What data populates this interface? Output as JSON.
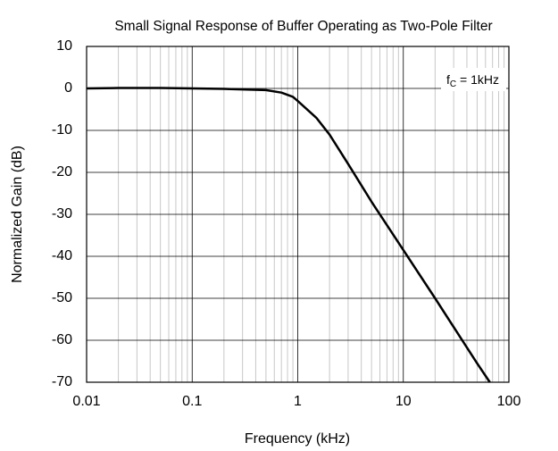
{
  "chart_data": {
    "type": "line",
    "title": "Small Signal Response of Buffer Operating as Two-Pole Filter",
    "x_label": "Frequency (kHz)",
    "y_label": "Normalized Gain (dB)",
    "annotation": {
      "base": "f",
      "sub": "C",
      "rest": " = 1kHz"
    },
    "x_log": true,
    "xlim": [
      0.01,
      100
    ],
    "xticks": [
      0.01,
      0.1,
      1,
      10,
      100
    ],
    "xminorticks": [
      0.02,
      0.03,
      0.04,
      0.05,
      0.06,
      0.07,
      0.08,
      0.09,
      0.2,
      0.3,
      0.4,
      0.5,
      0.6,
      0.7,
      0.8,
      0.9,
      2,
      3,
      4,
      5,
      6,
      7,
      8,
      9,
      20,
      30,
      40,
      50,
      60,
      70,
      80,
      90
    ],
    "ylim": [
      -70,
      10
    ],
    "yticks": [
      -70,
      -60,
      -50,
      -40,
      -30,
      -20,
      -10,
      0,
      10
    ],
    "grid": true,
    "series": [
      {
        "name": "Gain",
        "color": "#000000",
        "x": [
          0.01,
          0.02,
          0.05,
          0.1,
          0.2,
          0.5,
          0.7,
          0.9,
          1,
          1.5,
          2,
          3,
          5,
          10,
          20,
          50,
          66
        ],
        "values": [
          0,
          0.1,
          0.1,
          0,
          -0.1,
          -0.4,
          -1,
          -2,
          -3,
          -7,
          -11,
          -18,
          -27,
          -38.5,
          -50,
          -65.5,
          -70
        ]
      }
    ]
  }
}
